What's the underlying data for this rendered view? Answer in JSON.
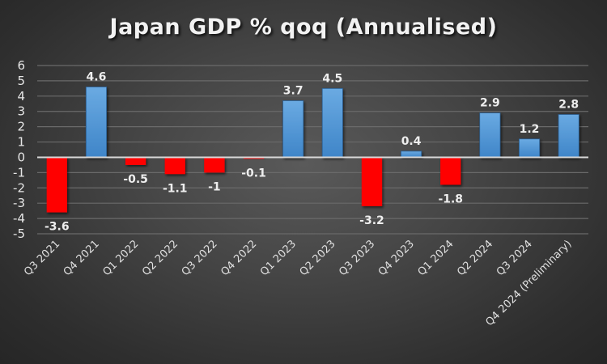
{
  "chart_data": {
    "type": "bar",
    "title": "Japan GDP % qoq (Annualised)",
    "xlabel": "",
    "ylabel": "",
    "ylim": [
      -5,
      6
    ],
    "yticks": [
      "6",
      "5",
      "4",
      "3",
      "2",
      "1",
      "0",
      "-1",
      "-2",
      "-3",
      "-4",
      "-5"
    ],
    "grid": true,
    "categories": [
      "Q3 2021",
      "Q4 2021",
      "Q1 2022",
      "Q2 2022",
      "Q3 2022",
      "Q4 2022",
      "Q1 2023",
      "Q2 2023",
      "Q3 2023",
      "Q4 2023",
      "Q1 2024",
      "Q2 2024",
      "Q3 2024",
      "Q4 2024 (Preliminary)"
    ],
    "values": [
      -3.6,
      4.6,
      -0.5,
      -1.1,
      -1,
      -0.1,
      3.7,
      4.5,
      -3.2,
      0.4,
      -1.8,
      2.9,
      1.2,
      2.8
    ],
    "data_labels": [
      "-3.6",
      "4.6",
      "-0.5",
      "-1.1",
      "-1",
      "-0.1",
      "3.7",
      "4.5",
      "-3.2",
      "0.4",
      "-1.8",
      "2.9",
      "1.2",
      "2.8"
    ],
    "colors": {
      "positive": "#5b9bd5",
      "negative": "#ff0000",
      "background": "#3a3a3a",
      "text": "#eeeeee"
    }
  }
}
